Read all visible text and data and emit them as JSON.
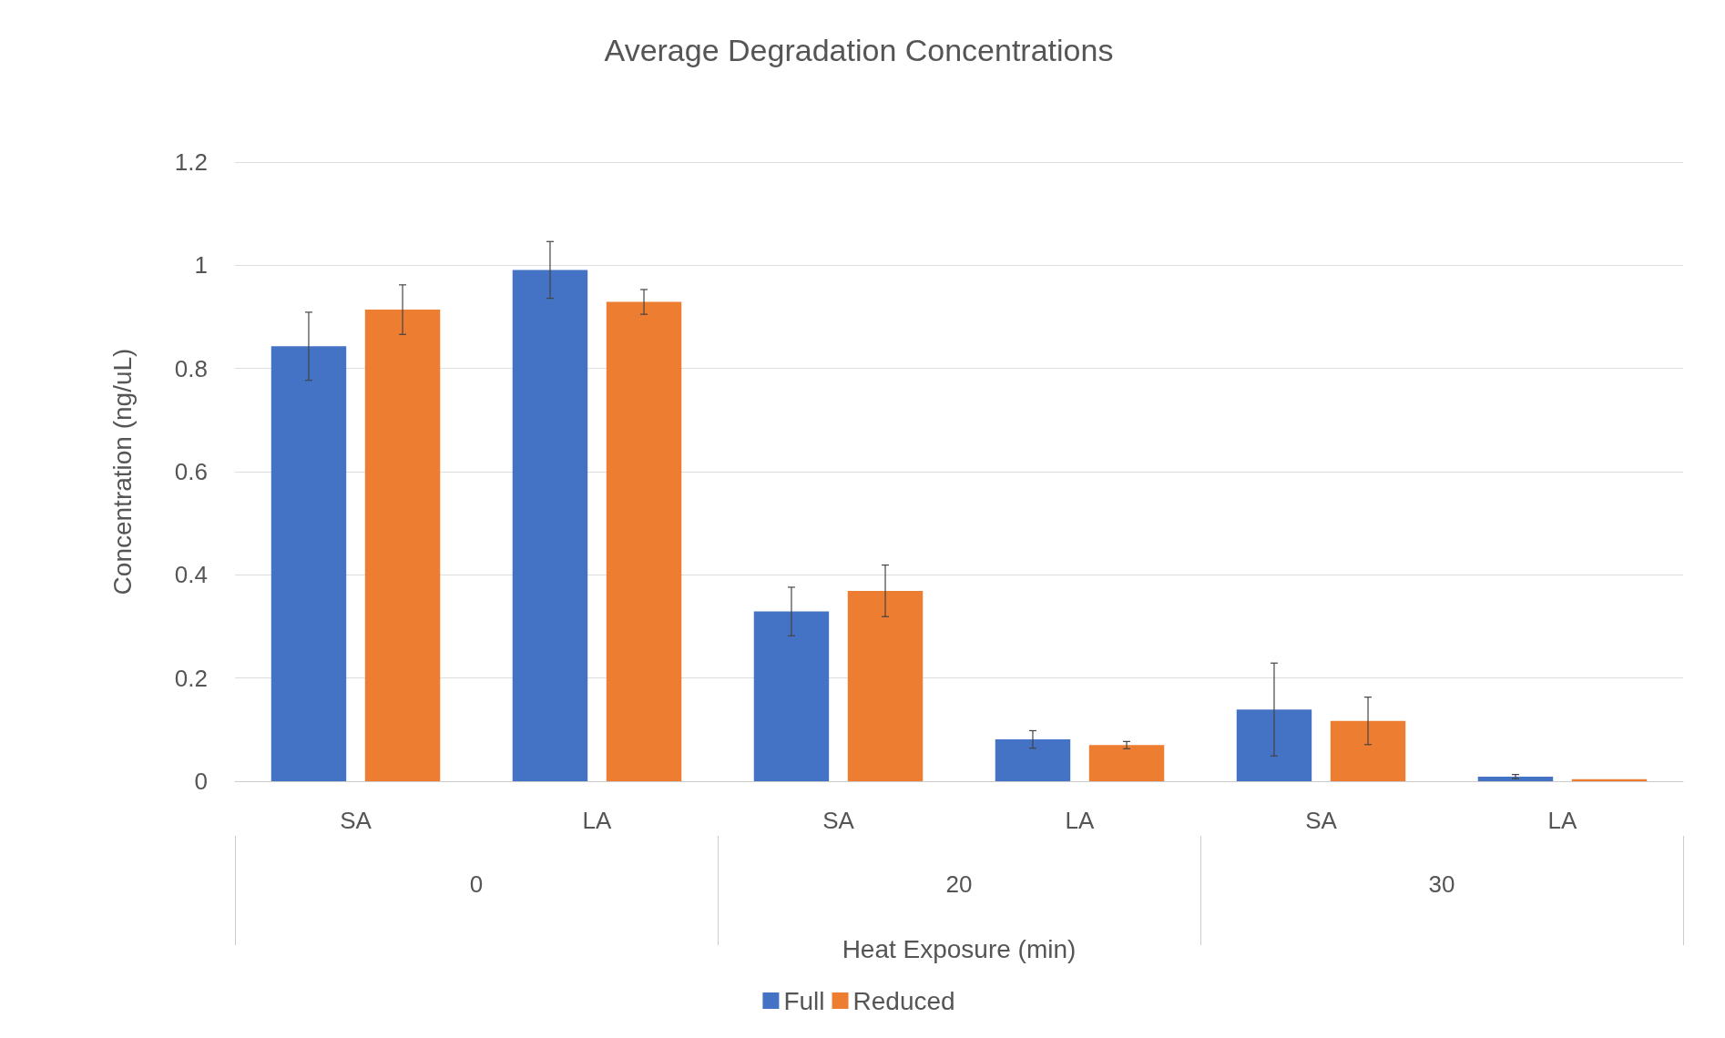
{
  "chart_data": {
    "type": "bar",
    "title": "Average Degradation Concentrations",
    "xlabel": "Heat Exposure (min)",
    "ylabel": "Concentration (ng/uL)",
    "categories": [
      "SA",
      "LA",
      "SA",
      "LA",
      "SA",
      "LA"
    ],
    "annotations": [
      "0",
      "20",
      "30"
    ],
    "series": [
      {
        "name": "Full",
        "color": "#4472c4",
        "values": [
          0.843,
          0.991,
          0.329,
          0.081,
          0.139,
          0.009
        ],
        "errors": [
          0.066,
          0.055,
          0.047,
          0.017,
          0.09,
          0.004
        ]
      },
      {
        "name": "Reduced",
        "color": "#ed7d31",
        "values": [
          0.914,
          0.929,
          0.369,
          0.07,
          0.117,
          0.004
        ],
        "errors": [
          0.048,
          0.024,
          0.05,
          0.007,
          0.046,
          null
        ]
      }
    ],
    "ylim": [
      0,
      1.2
    ],
    "yticks": [
      0,
      0.2,
      0.4,
      0.6,
      0.8,
      1,
      1.2
    ],
    "grid": "y",
    "legend": "bottom"
  }
}
